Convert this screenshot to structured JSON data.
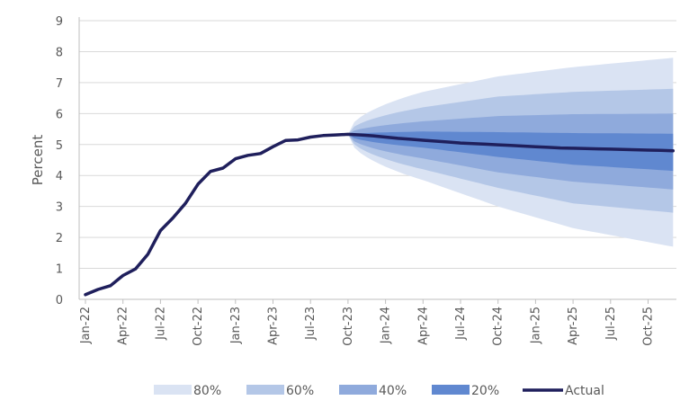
{
  "chart_data": {
    "type": "area",
    "title": "",
    "xlabel": "",
    "ylabel": "Percent",
    "ylim": [
      0,
      9
    ],
    "yticks": [
      "0",
      "1",
      "2",
      "3",
      "4",
      "5",
      "6",
      "7",
      "8",
      "9"
    ],
    "xtick_labels": [
      "Jan-22",
      "Apr-22",
      "Jul-22",
      "Oct-22",
      "Jan-23",
      "Apr-23",
      "Jul-23",
      "Oct-23",
      "Jan-24",
      "Apr-24",
      "Jul-24",
      "Oct-24",
      "Jan-25",
      "Apr-25",
      "Jul-25",
      "Oct-25"
    ],
    "grid": true,
    "legend_position": "bottom",
    "fan_start_month_index": 21,
    "series": [
      {
        "name": "Actual",
        "color": "#1f1f5c",
        "months": [
          0,
          1,
          2,
          3,
          4,
          5,
          6,
          7,
          8,
          9,
          10,
          11,
          12,
          13,
          14,
          15,
          16,
          17,
          18,
          19,
          20,
          21,
          22,
          23,
          24,
          25,
          26,
          27,
          28,
          29,
          30,
          31,
          32,
          33,
          34,
          35,
          36,
          37,
          38,
          39,
          40,
          41,
          42,
          43,
          44,
          45,
          46,
          47
        ],
        "values": [
          0.15,
          0.32,
          0.44,
          0.77,
          0.98,
          1.46,
          2.22,
          2.63,
          3.1,
          3.72,
          4.13,
          4.24,
          4.54,
          4.65,
          4.71,
          4.93,
          5.13,
          5.15,
          5.24,
          5.29,
          5.31,
          5.33,
          5.31,
          5.28,
          5.24,
          5.2,
          5.17,
          5.14,
          5.11,
          5.08,
          5.05,
          5.03,
          5.01,
          4.99,
          4.97,
          4.95,
          4.93,
          4.91,
          4.89,
          4.88,
          4.87,
          4.86,
          4.85,
          4.84,
          4.83,
          4.82,
          4.81,
          4.8
        ]
      }
    ],
    "bands": [
      {
        "name": "80%",
        "color": "#dae3f3",
        "months": [
          21,
          27,
          33,
          39,
          47
        ],
        "upper": [
          5.33,
          6.7,
          7.2,
          7.5,
          7.8
        ],
        "lower": [
          5.33,
          3.85,
          3.0,
          2.3,
          1.7
        ]
      },
      {
        "name": "60%",
        "color": "#b4c7e7",
        "months": [
          21,
          27,
          33,
          39,
          47
        ],
        "upper": [
          5.33,
          6.2,
          6.55,
          6.7,
          6.8
        ],
        "lower": [
          5.33,
          4.2,
          3.6,
          3.1,
          2.8
        ]
      },
      {
        "name": "40%",
        "color": "#8faadc",
        "months": [
          21,
          27,
          33,
          39,
          47
        ],
        "upper": [
          5.33,
          5.75,
          5.92,
          5.98,
          6.0
        ],
        "lower": [
          5.33,
          4.55,
          4.1,
          3.8,
          3.55
        ]
      },
      {
        "name": "20%",
        "color": "#6088d0",
        "months": [
          21,
          27,
          33,
          39,
          47
        ],
        "upper": [
          5.33,
          5.42,
          5.4,
          5.37,
          5.35
        ],
        "lower": [
          5.33,
          4.9,
          4.6,
          4.35,
          4.15
        ]
      }
    ]
  }
}
